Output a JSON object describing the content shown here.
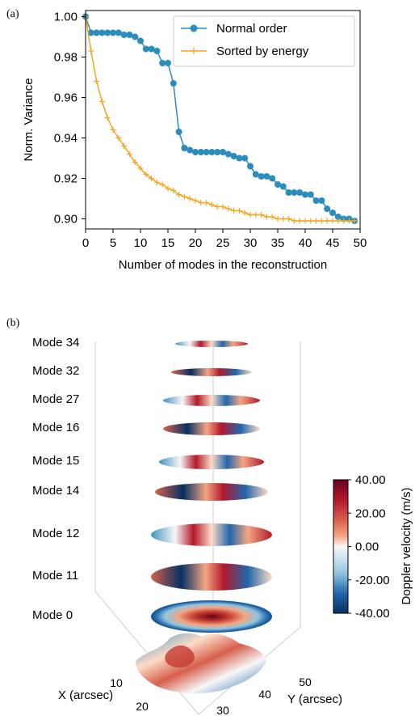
{
  "panel_a_label": "(a)",
  "panel_b_label": "(b)",
  "chart_data": [
    {
      "type": "line",
      "xlabel": "Number of modes in the reconstruction",
      "ylabel": "Norm. Variance",
      "xlim": [
        0,
        50
      ],
      "ylim": [
        0.895,
        1.003
      ],
      "xticks": [
        0,
        5,
        10,
        15,
        20,
        25,
        30,
        35,
        40,
        45,
        50
      ],
      "yticks": [
        0.9,
        0.92,
        0.94,
        0.96,
        0.98,
        1.0
      ],
      "ytick_labels": [
        "0.90",
        "0.92",
        "0.94",
        "0.96",
        "0.98",
        "1.00"
      ],
      "grid": false,
      "legend_position": "top-right",
      "series": [
        {
          "name": "Normal order",
          "color": "#2b8cbe",
          "marker": "circle",
          "x": [
            0,
            1,
            2,
            3,
            4,
            5,
            6,
            7,
            8,
            9,
            10,
            11,
            12,
            13,
            14,
            15,
            16,
            17,
            18,
            19,
            20,
            21,
            22,
            23,
            24,
            25,
            26,
            27,
            28,
            29,
            30,
            31,
            32,
            33,
            34,
            35,
            36,
            37,
            38,
            39,
            40,
            41,
            42,
            43,
            44,
            45,
            46,
            47,
            48,
            49
          ],
          "values": [
            1.0,
            0.992,
            0.992,
            0.992,
            0.992,
            0.992,
            0.992,
            0.991,
            0.991,
            0.99,
            0.988,
            0.984,
            0.984,
            0.983,
            0.977,
            0.977,
            0.967,
            0.943,
            0.935,
            0.934,
            0.933,
            0.933,
            0.933,
            0.933,
            0.933,
            0.933,
            0.932,
            0.931,
            0.93,
            0.93,
            0.926,
            0.922,
            0.921,
            0.921,
            0.92,
            0.917,
            0.916,
            0.913,
            0.913,
            0.913,
            0.912,
            0.912,
            0.909,
            0.909,
            0.905,
            0.903,
            0.901,
            0.9,
            0.9,
            0.899
          ]
        },
        {
          "name": "Sorted by energy",
          "color": "#f5a623",
          "marker": "plus",
          "x": [
            0,
            1,
            2,
            3,
            4,
            5,
            6,
            7,
            8,
            9,
            10,
            11,
            12,
            13,
            14,
            15,
            16,
            17,
            18,
            19,
            20,
            21,
            22,
            23,
            24,
            25,
            26,
            27,
            28,
            29,
            30,
            31,
            32,
            33,
            34,
            35,
            36,
            37,
            38,
            39,
            40,
            41,
            42,
            43,
            44,
            45,
            46,
            47,
            48,
            49
          ],
          "values": [
            1.0,
            0.983,
            0.968,
            0.958,
            0.95,
            0.944,
            0.94,
            0.936,
            0.932,
            0.928,
            0.925,
            0.922,
            0.92,
            0.918,
            0.917,
            0.915,
            0.914,
            0.912,
            0.911,
            0.91,
            0.909,
            0.908,
            0.908,
            0.907,
            0.906,
            0.906,
            0.905,
            0.904,
            0.904,
            0.903,
            0.902,
            0.902,
            0.902,
            0.901,
            0.901,
            0.9,
            0.9,
            0.9,
            0.899,
            0.899,
            0.899,
            0.899,
            0.899,
            0.899,
            0.899,
            0.899,
            0.899,
            0.899,
            0.899,
            0.899
          ]
        }
      ]
    },
    {
      "type": "heatmap",
      "subtype": "stacked-3d-surfaces",
      "layers": [
        "Mode 34",
        "Mode 32",
        "Mode 27",
        "Mode 16",
        "Mode 15",
        "Mode 14",
        "Mode 12",
        "Mode 11",
        "Mode 0"
      ],
      "x_axis_label": "X (arcsec)",
      "x_ticks": [
        "10",
        "20"
      ],
      "y_axis_label": "Y (arcsec)",
      "y_ticks": [
        "30",
        "40",
        "50"
      ],
      "colorbar": {
        "label": "Doppler velocity (m/s)",
        "ticks": [
          "40.00",
          "20.00",
          "0.00",
          "-20.00",
          "-40.00"
        ],
        "range": [
          -40,
          40
        ],
        "colormap": "RdBu_r",
        "colors": [
          "#67001f",
          "#b2182b",
          "#d6604d",
          "#f4a582",
          "#fddbc7",
          "#f7f7f7",
          "#d1e5f0",
          "#92c5de",
          "#4393c3",
          "#2166ac",
          "#053061"
        ]
      }
    }
  ]
}
